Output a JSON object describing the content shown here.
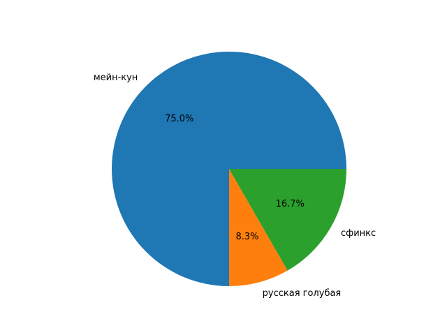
{
  "chart_data": {
    "type": "pie",
    "slices": [
      {
        "label": "мейн-кун",
        "value": 75.0,
        "pct_label": "75.0%",
        "color": "#1f77b4"
      },
      {
        "label": "русская голубая",
        "value": 8.3,
        "pct_label": "8.3%",
        "color": "#ff7f0e"
      },
      {
        "label": "сфинкс",
        "value": 16.7,
        "pct_label": "16.7%",
        "color": "#2ca02c"
      }
    ],
    "start_angle": 0,
    "direction": "counterclockwise",
    "title": "",
    "legend": false
  }
}
